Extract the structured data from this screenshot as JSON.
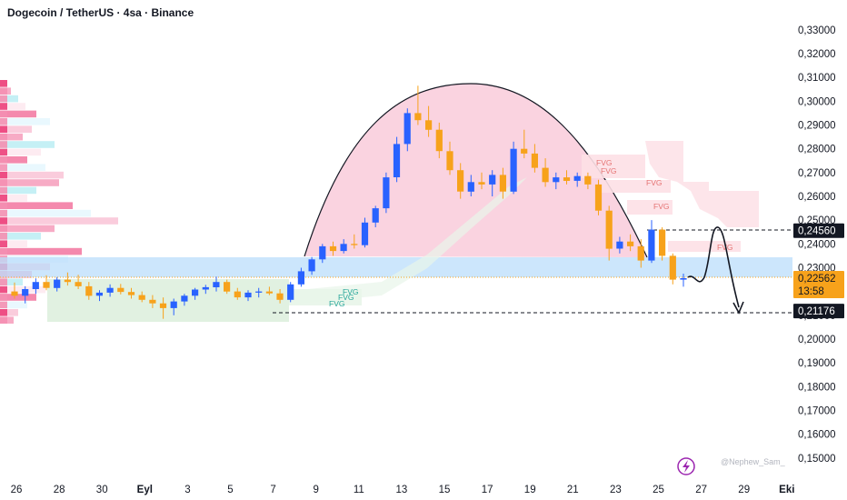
{
  "header": {
    "title": "Dogecoin / TetherUS · 4sa · Binance"
  },
  "chart_data": {
    "type": "candlestick",
    "y_ticks": [
      "0,33000",
      "0,32000",
      "0,31000",
      "0,30000",
      "0,29000",
      "0,28000",
      "0,27000",
      "0,26000",
      "0,25000",
      "0,24000",
      "0,23000",
      "0,22000",
      "0,21000",
      "0,20000",
      "0,19000",
      "0,18000",
      "0,17000",
      "0,16000",
      "0,15000"
    ],
    "y_tick_values": [
      0.33,
      0.32,
      0.31,
      0.3,
      0.29,
      0.28,
      0.27,
      0.26,
      0.25,
      0.24,
      0.23,
      0.22,
      0.21,
      0.2,
      0.19,
      0.18,
      0.17,
      0.16,
      0.15
    ],
    "ylim": [
      0.148,
      0.333
    ],
    "x_ticks": [
      "26",
      "28",
      "30",
      "Eyl",
      "3",
      "5",
      "7",
      "9",
      "11",
      "13",
      "15",
      "17",
      "19",
      "21",
      "23",
      "25",
      "27",
      "29",
      "Eki"
    ],
    "x_tick_bold": [
      "Eyl",
      "Eki"
    ],
    "price_tags": [
      {
        "label": "0,24560",
        "value": 0.2456,
        "style": "level"
      },
      {
        "label": "0,22562",
        "value": 0.2256,
        "style": "current",
        "timer": "13:58"
      },
      {
        "label": "0,21176",
        "value": 0.2118,
        "style": "level"
      }
    ],
    "fvg_labels": [
      "FVG",
      "FVG",
      "FVG",
      "FVG",
      "FVG",
      "FVG",
      "FVG",
      "FVG"
    ],
    "colors": {
      "up": "#2962ff",
      "down": "#f7a21b",
      "bear_zone": "#f8bbd0",
      "bull_zone": "#c8e6c9",
      "support": "#bbdefb"
    },
    "candles": [
      {
        "x": "Aug 25 12:00",
        "o": 0.22,
        "h": 0.2238,
        "l": 0.217,
        "c": 0.2182
      },
      {
        "x": "Aug 26 00:00",
        "o": 0.2182,
        "h": 0.2222,
        "l": 0.215,
        "c": 0.221
      },
      {
        "x": "Aug 26 12:00",
        "o": 0.221,
        "h": 0.2255,
        "l": 0.219,
        "c": 0.224
      },
      {
        "x": "Aug 27 00:00",
        "o": 0.224,
        "h": 0.2268,
        "l": 0.2205,
        "c": 0.2215
      },
      {
        "x": "Aug 27 12:00",
        "o": 0.2215,
        "h": 0.226,
        "l": 0.22,
        "c": 0.225
      },
      {
        "x": "Aug 28 00:00",
        "o": 0.225,
        "h": 0.228,
        "l": 0.2225,
        "c": 0.224
      },
      {
        "x": "Aug 28 12:00",
        "o": 0.224,
        "h": 0.227,
        "l": 0.221,
        "c": 0.2222
      },
      {
        "x": "Aug 29 00:00",
        "o": 0.2222,
        "h": 0.224,
        "l": 0.2165,
        "c": 0.2182
      },
      {
        "x": "Aug 29 12:00",
        "o": 0.2182,
        "h": 0.2205,
        "l": 0.216,
        "c": 0.2195
      },
      {
        "x": "Aug 30 00:00",
        "o": 0.2195,
        "h": 0.223,
        "l": 0.2178,
        "c": 0.2215
      },
      {
        "x": "Aug 30 12:00",
        "o": 0.2215,
        "h": 0.2232,
        "l": 0.2188,
        "c": 0.2198
      },
      {
        "x": "Aug 31 00:00",
        "o": 0.2198,
        "h": 0.2215,
        "l": 0.217,
        "c": 0.2185
      },
      {
        "x": "Aug 31 12:00",
        "o": 0.2185,
        "h": 0.22,
        "l": 0.2155,
        "c": 0.2165
      },
      {
        "x": "Sep 01 00:00",
        "o": 0.2165,
        "h": 0.2185,
        "l": 0.213,
        "c": 0.215
      },
      {
        "x": "Sep 01 12:00",
        "o": 0.215,
        "h": 0.2175,
        "l": 0.2085,
        "c": 0.213
      },
      {
        "x": "Sep 02 00:00",
        "o": 0.213,
        "h": 0.217,
        "l": 0.21,
        "c": 0.2158
      },
      {
        "x": "Sep 02 12:00",
        "o": 0.2158,
        "h": 0.219,
        "l": 0.214,
        "c": 0.2182
      },
      {
        "x": "Sep 03 00:00",
        "o": 0.2182,
        "h": 0.2215,
        "l": 0.2165,
        "c": 0.2208
      },
      {
        "x": "Sep 03 12:00",
        "o": 0.2208,
        "h": 0.2228,
        "l": 0.219,
        "c": 0.2218
      },
      {
        "x": "Sep 04 00:00",
        "o": 0.2218,
        "h": 0.2262,
        "l": 0.22,
        "c": 0.224
      },
      {
        "x": "Sep 04 12:00",
        "o": 0.224,
        "h": 0.225,
        "l": 0.219,
        "c": 0.22
      },
      {
        "x": "Sep 05 00:00",
        "o": 0.22,
        "h": 0.2215,
        "l": 0.2165,
        "c": 0.2175
      },
      {
        "x": "Sep 05 12:00",
        "o": 0.2175,
        "h": 0.2205,
        "l": 0.216,
        "c": 0.2195
      },
      {
        "x": "Sep 06 00:00",
        "o": 0.2195,
        "h": 0.2215,
        "l": 0.2175,
        "c": 0.22
      },
      {
        "x": "Sep 06 12:00",
        "o": 0.22,
        "h": 0.222,
        "l": 0.2185,
        "c": 0.2192
      },
      {
        "x": "Sep 07 00:00",
        "o": 0.2192,
        "h": 0.221,
        "l": 0.215,
        "c": 0.2165
      },
      {
        "x": "Sep 07 12:00",
        "o": 0.2165,
        "h": 0.224,
        "l": 0.2155,
        "c": 0.223
      },
      {
        "x": "Sep 08 00:00",
        "o": 0.223,
        "h": 0.23,
        "l": 0.222,
        "c": 0.2285
      },
      {
        "x": "Sep 08 12:00",
        "o": 0.2285,
        "h": 0.2345,
        "l": 0.227,
        "c": 0.2335
      },
      {
        "x": "Sep 09 00:00",
        "o": 0.2335,
        "h": 0.24,
        "l": 0.232,
        "c": 0.239
      },
      {
        "x": "Sep 09 12:00",
        "o": 0.239,
        "h": 0.241,
        "l": 0.235,
        "c": 0.237
      },
      {
        "x": "Sep 10 00:00",
        "o": 0.237,
        "h": 0.242,
        "l": 0.236,
        "c": 0.24
      },
      {
        "x": "Sep 10 12:00",
        "o": 0.24,
        "h": 0.244,
        "l": 0.238,
        "c": 0.2395
      },
      {
        "x": "Sep 11 00:00",
        "o": 0.2395,
        "h": 0.251,
        "l": 0.2385,
        "c": 0.249
      },
      {
        "x": "Sep 11 12:00",
        "o": 0.249,
        "h": 0.256,
        "l": 0.247,
        "c": 0.255
      },
      {
        "x": "Sep 12 00:00",
        "o": 0.255,
        "h": 0.27,
        "l": 0.253,
        "c": 0.268
      },
      {
        "x": "Sep 12 12:00",
        "o": 0.268,
        "h": 0.285,
        "l": 0.266,
        "c": 0.282
      },
      {
        "x": "Sep 13 00:00",
        "o": 0.282,
        "h": 0.297,
        "l": 0.279,
        "c": 0.295
      },
      {
        "x": "Sep 13 12:00",
        "o": 0.295,
        "h": 0.3065,
        "l": 0.29,
        "c": 0.292
      },
      {
        "x": "Sep 14 00:00",
        "o": 0.292,
        "h": 0.298,
        "l": 0.285,
        "c": 0.288
      },
      {
        "x": "Sep 14 12:00",
        "o": 0.288,
        "h": 0.291,
        "l": 0.276,
        "c": 0.279
      },
      {
        "x": "Sep 15 00:00",
        "o": 0.279,
        "h": 0.283,
        "l": 0.269,
        "c": 0.271
      },
      {
        "x": "Sep 15 12:00",
        "o": 0.271,
        "h": 0.274,
        "l": 0.259,
        "c": 0.262
      },
      {
        "x": "Sep 16 00:00",
        "o": 0.262,
        "h": 0.269,
        "l": 0.26,
        "c": 0.266
      },
      {
        "x": "Sep 16 12:00",
        "o": 0.266,
        "h": 0.27,
        "l": 0.263,
        "c": 0.265
      },
      {
        "x": "Sep 17 00:00",
        "o": 0.265,
        "h": 0.271,
        "l": 0.26,
        "c": 0.269
      },
      {
        "x": "Sep 17 12:00",
        "o": 0.269,
        "h": 0.272,
        "l": 0.259,
        "c": 0.262
      },
      {
        "x": "Sep 18 00:00",
        "o": 0.262,
        "h": 0.283,
        "l": 0.261,
        "c": 0.28
      },
      {
        "x": "Sep 18 12:00",
        "o": 0.28,
        "h": 0.288,
        "l": 0.276,
        "c": 0.278
      },
      {
        "x": "Sep 19 00:00",
        "o": 0.278,
        "h": 0.282,
        "l": 0.27,
        "c": 0.272
      },
      {
        "x": "Sep 19 12:00",
        "o": 0.272,
        "h": 0.276,
        "l": 0.264,
        "c": 0.266
      },
      {
        "x": "Sep 20 00:00",
        "o": 0.266,
        "h": 0.27,
        "l": 0.263,
        "c": 0.268
      },
      {
        "x": "Sep 20 12:00",
        "o": 0.268,
        "h": 0.271,
        "l": 0.265,
        "c": 0.2665
      },
      {
        "x": "Sep 21 00:00",
        "o": 0.2665,
        "h": 0.27,
        "l": 0.264,
        "c": 0.2685
      },
      {
        "x": "Sep 21 12:00",
        "o": 0.2685,
        "h": 0.27,
        "l": 0.263,
        "c": 0.265
      },
      {
        "x": "Sep 22 00:00",
        "o": 0.265,
        "h": 0.267,
        "l": 0.252,
        "c": 0.254
      },
      {
        "x": "Sep 22 12:00",
        "o": 0.254,
        "h": 0.256,
        "l": 0.233,
        "c": 0.238
      },
      {
        "x": "Sep 23 00:00",
        "o": 0.238,
        "h": 0.243,
        "l": 0.236,
        "c": 0.241
      },
      {
        "x": "Sep 23 12:00",
        "o": 0.241,
        "h": 0.244,
        "l": 0.237,
        "c": 0.239
      },
      {
        "x": "Sep 24 00:00",
        "o": 0.239,
        "h": 0.242,
        "l": 0.23,
        "c": 0.233
      },
      {
        "x": "Sep 24 12:00",
        "o": 0.233,
        "h": 0.25,
        "l": 0.232,
        "c": 0.246
      },
      {
        "x": "Sep 25 00:00",
        "o": 0.246,
        "h": 0.247,
        "l": 0.233,
        "c": 0.235
      },
      {
        "x": "Sep 25 12:00",
        "o": 0.235,
        "h": 0.236,
        "l": 0.223,
        "c": 0.225
      },
      {
        "x": "Sep 26 00:00",
        "o": 0.225,
        "h": 0.2275,
        "l": 0.222,
        "c": 0.2256
      }
    ]
  },
  "watermark": {
    "text": "@Nephew_Sam_"
  }
}
